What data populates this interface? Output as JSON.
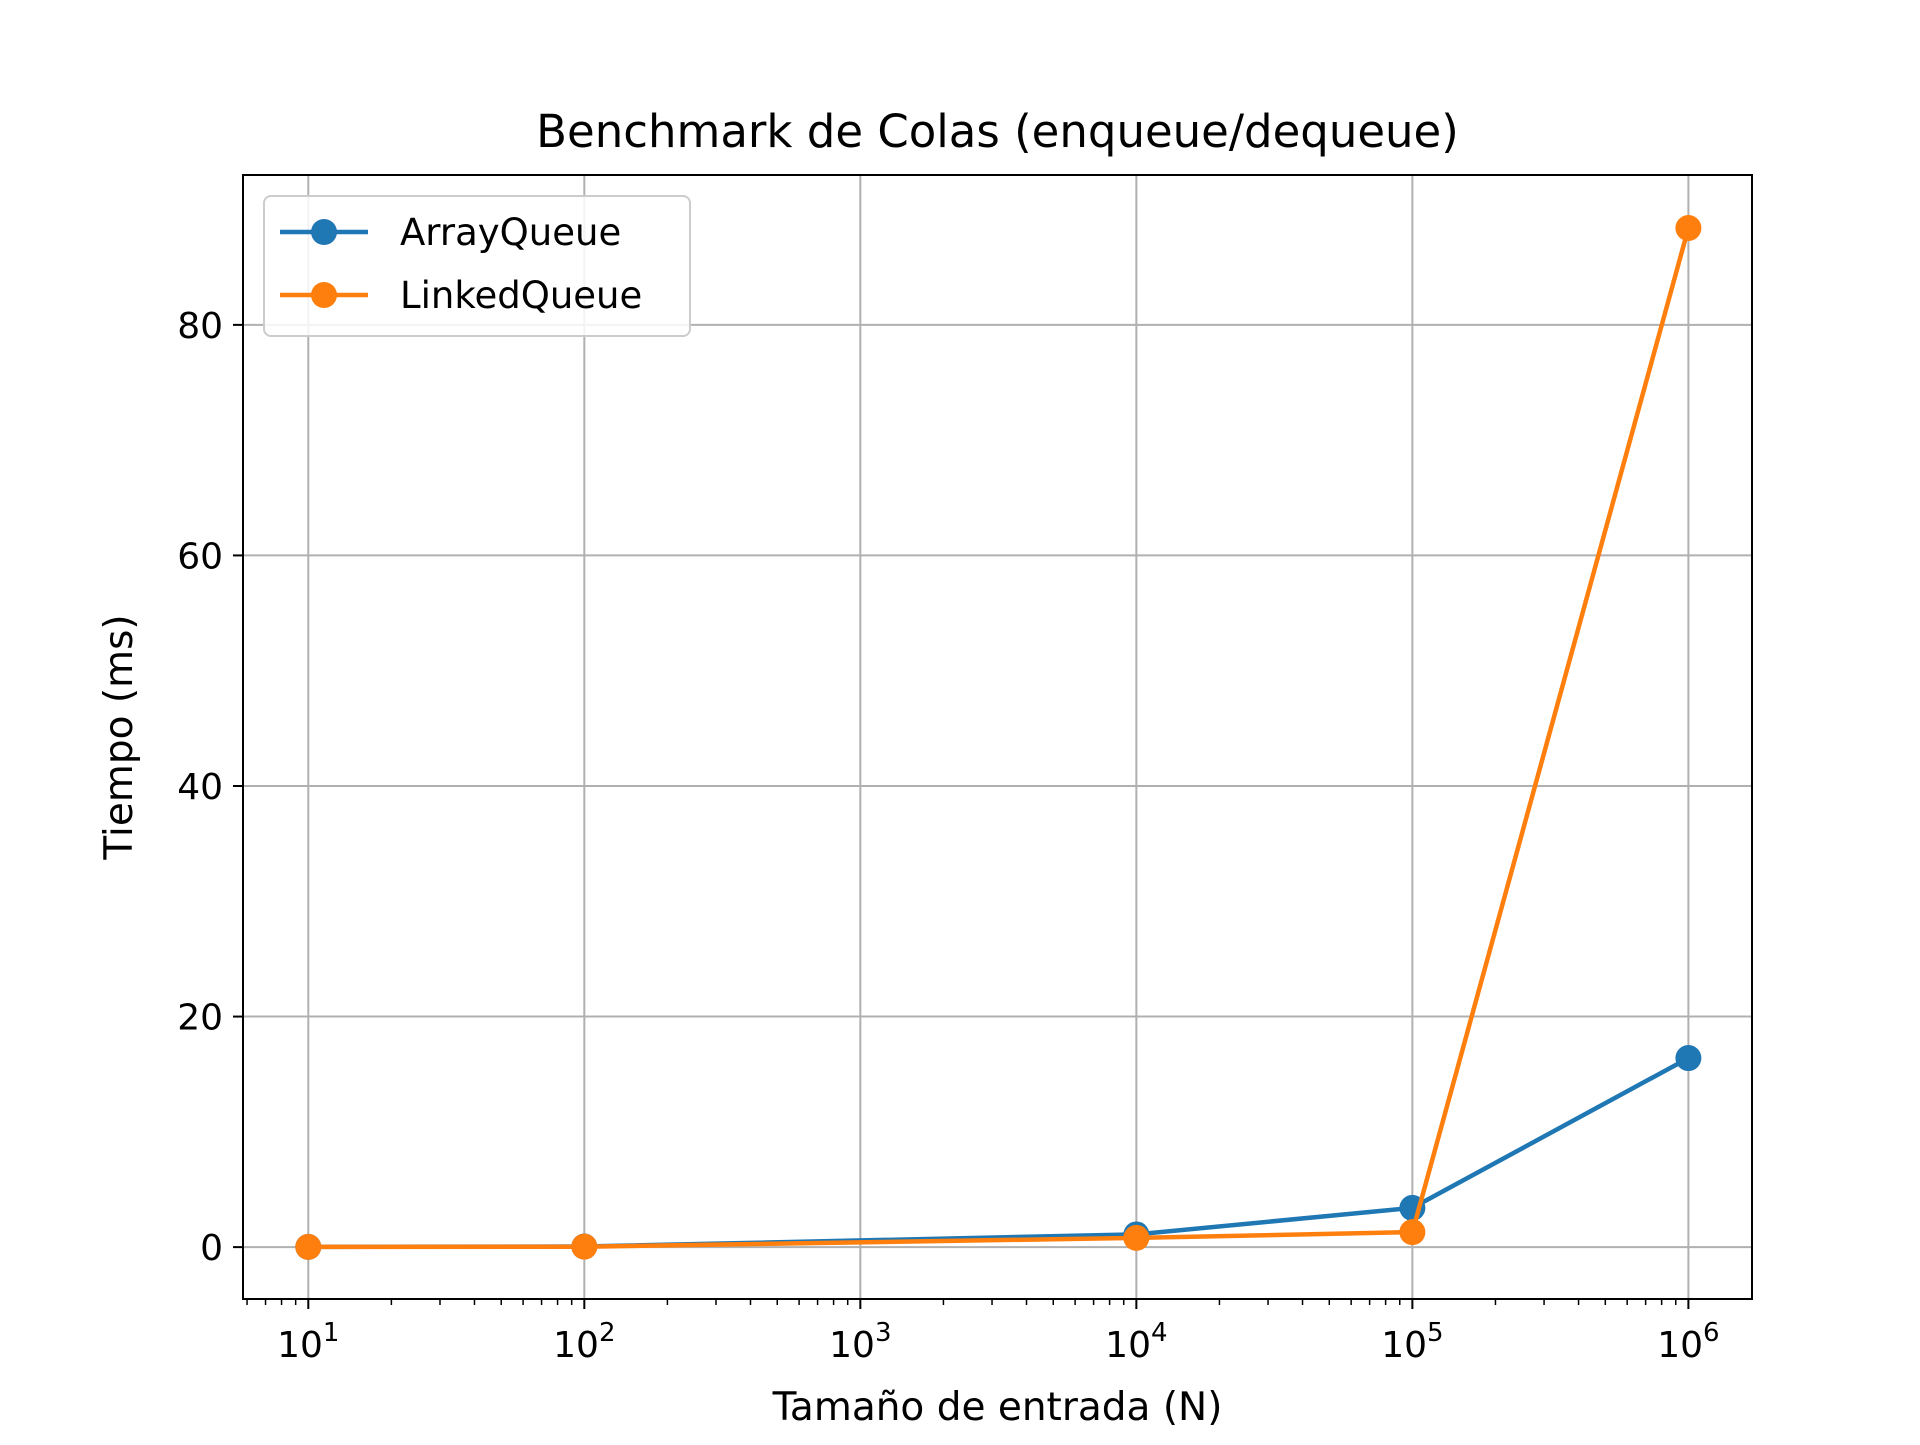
{
  "chart_data": {
    "type": "line",
    "title": "Benchmark de Colas (enqueue/dequeue)",
    "xlabel": "Tamaño de entrada (N)",
    "ylabel": "Tiempo (ms)",
    "xscale": "log",
    "xlim": [
      5.8,
      1700000
    ],
    "ylim": [
      -4.5,
      93
    ],
    "grid": true,
    "legend_position": "top-left",
    "x": [
      10,
      100,
      10000,
      100000,
      1000000
    ],
    "x_ticks": [
      {
        "value": 10,
        "base": "10",
        "exp": "1"
      },
      {
        "value": 100,
        "base": "10",
        "exp": "2"
      },
      {
        "value": 1000,
        "base": "10",
        "exp": "3"
      },
      {
        "value": 10000,
        "base": "10",
        "exp": "4"
      },
      {
        "value": 100000,
        "base": "10",
        "exp": "5"
      },
      {
        "value": 1000000,
        "base": "10",
        "exp": "6"
      }
    ],
    "y_ticks": [
      0,
      20,
      40,
      60,
      80
    ],
    "series": [
      {
        "name": "ArrayQueue",
        "color": "#1f77b4",
        "values": [
          0.02,
          0.05,
          1.1,
          3.4,
          16.4
        ]
      },
      {
        "name": "LinkedQueue",
        "color": "#ff7f0e",
        "values": [
          0.02,
          0.04,
          0.8,
          1.3,
          88.4
        ]
      }
    ]
  }
}
